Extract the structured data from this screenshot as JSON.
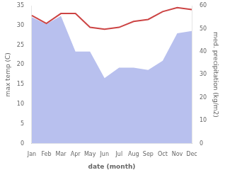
{
  "chart_data": {
    "type": "line",
    "categories": [
      "Jan",
      "Feb",
      "Mar",
      "Apr",
      "May",
      "Jun",
      "Jul",
      "Aug",
      "Sep",
      "Oct",
      "Nov",
      "Dec"
    ],
    "xlabel": "date (month)",
    "ylabel": "max temp (C)",
    "y2label": "med. precipitation (kg/m2)",
    "series": [
      {
        "type": "area",
        "axis": "y2",
        "color": "#b8c0ee",
        "values": [
          55.0,
          52.0,
          55.5,
          40.0,
          40.0,
          28.5,
          33.0,
          33.0,
          32.0,
          36.0,
          48.0,
          49.0
        ]
      },
      {
        "type": "line",
        "color": "#cc4444",
        "values": [
          32.5,
          30.5,
          33.0,
          33.0,
          29.5,
          29.0,
          29.5,
          31.0,
          31.5,
          33.5,
          34.5,
          34.0
        ]
      }
    ],
    "ylim": [
      0,
      35
    ],
    "yticks": [
      0,
      5,
      10,
      15,
      20,
      25,
      30,
      35
    ],
    "y2lim": [
      0,
      60
    ],
    "y2ticks": [
      0,
      10,
      20,
      30,
      40,
      50,
      60
    ],
    "grid": false
  }
}
